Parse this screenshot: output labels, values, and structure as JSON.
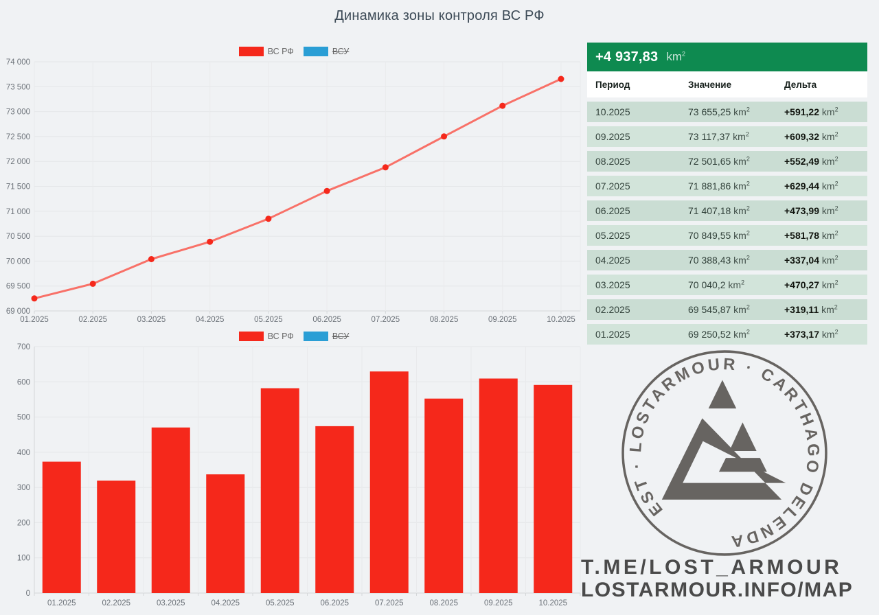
{
  "title": "Динамика зоны контроля ВС РФ",
  "legend": {
    "vsrf": "ВС РФ",
    "vsu": "ВСУ"
  },
  "colors": {
    "accent_red": "#f5281b",
    "line_red": "#f87168",
    "accent_blue": "#2a9ed5",
    "green": "#0e8a50",
    "row_dark": "#caddd3",
    "row_light": "#d2e4da"
  },
  "chart_data": [
    {
      "type": "line",
      "title": "",
      "categories": [
        "01.2025",
        "02.2025",
        "03.2025",
        "04.2025",
        "05.2025",
        "06.2025",
        "07.2025",
        "08.2025",
        "09.2025",
        "10.2025"
      ],
      "series": [
        {
          "name": "ВС РФ",
          "hidden": false,
          "values": [
            69250.52,
            69545.87,
            70040.2,
            70388.43,
            70849.55,
            71407.18,
            71881.86,
            72501.65,
            73117.37,
            73655.25
          ]
        },
        {
          "name": "ВСУ",
          "hidden": true,
          "values": []
        }
      ],
      "ylim": [
        69000,
        74000
      ],
      "ytick_step": 500,
      "yticks": [
        "69 000",
        "69 500",
        "70 000",
        "70 500",
        "71 000",
        "71 500",
        "72 000",
        "72 500",
        "73 000",
        "73 500",
        "74 000"
      ],
      "grid": true,
      "legend_position": "top"
    },
    {
      "type": "bar",
      "title": "",
      "categories": [
        "01.2025",
        "02.2025",
        "03.2025",
        "04.2025",
        "05.2025",
        "06.2025",
        "07.2025",
        "08.2025",
        "09.2025",
        "10.2025"
      ],
      "series": [
        {
          "name": "ВС РФ",
          "hidden": false,
          "values": [
            373.17,
            319.11,
            470.27,
            337.04,
            581.78,
            473.99,
            629.44,
            552.49,
            609.32,
            591.22
          ]
        },
        {
          "name": "ВСУ",
          "hidden": true,
          "values": []
        }
      ],
      "ylim": [
        0,
        700
      ],
      "ytick_step": 100,
      "yticks": [
        "0",
        "100",
        "200",
        "300",
        "400",
        "500",
        "600",
        "700"
      ],
      "grid": true,
      "legend_position": "top"
    }
  ],
  "table": {
    "total": "+4 937,83",
    "unit": "km",
    "unit_sup": "2",
    "columns": [
      "Период",
      "Значение",
      "Дельта"
    ],
    "rows": [
      {
        "period": "10.2025",
        "value": "73 655,25",
        "delta": "+591,22"
      },
      {
        "period": "09.2025",
        "value": "73 117,37",
        "delta": "+609,32"
      },
      {
        "period": "08.2025",
        "value": "72 501,65",
        "delta": "+552,49"
      },
      {
        "period": "07.2025",
        "value": "71 881,86",
        "delta": "+629,44"
      },
      {
        "period": "06.2025",
        "value": "71 407,18",
        "delta": "+473,99"
      },
      {
        "period": "05.2025",
        "value": "70 849,55",
        "delta": "+581,78"
      },
      {
        "period": "04.2025",
        "value": "70 388,43",
        "delta": "+337,04"
      },
      {
        "period": "03.2025",
        "value": "70 040,2",
        "delta": "+470,27"
      },
      {
        "period": "02.2025",
        "value": "69 545,87",
        "delta": "+319,11"
      },
      {
        "period": "01.2025",
        "value": "69 250,52",
        "delta": "+373,17"
      }
    ]
  },
  "watermark": {
    "ring_text": "EST · LOSTARMOUR · CARTHAGO DELENDA",
    "line1": "T.ME/LOST_ARMOUR",
    "line2": "LOSTARMOUR.INFO/MAP"
  }
}
